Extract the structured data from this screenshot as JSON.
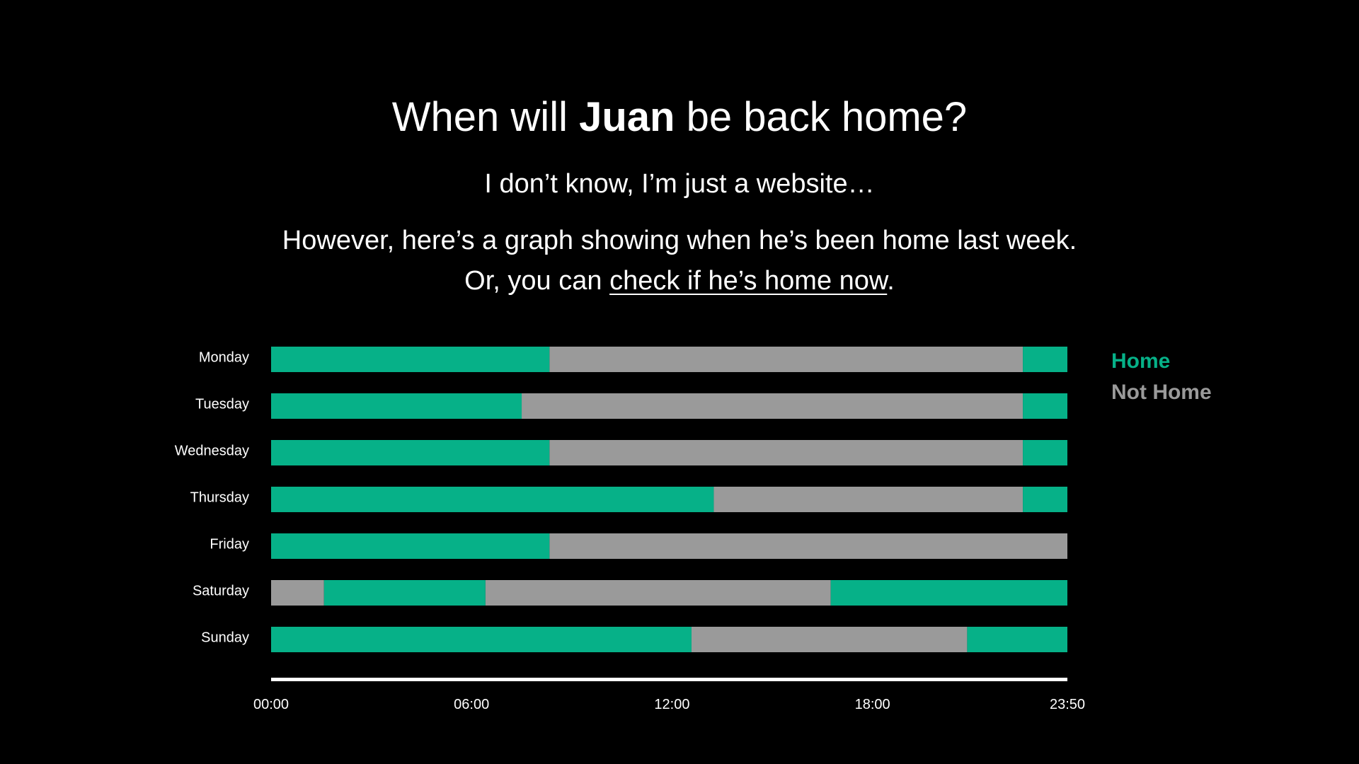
{
  "header": {
    "title_prefix": "When will ",
    "title_name": "Juan",
    "title_suffix": " be back home?",
    "subtitle": "I don’t know, I’m just a website…",
    "description_line1": "However, here’s a graph showing when he’s been home last week.",
    "description_line2_prefix": "Or, you can ",
    "description_link": "check if he’s home now",
    "description_line2_suffix": "."
  },
  "chart_data": {
    "type": "bar",
    "orientation": "horizontal-timeline",
    "x_unit": "time of day",
    "xlim": [
      "00:00",
      "23:50"
    ],
    "x_ticks": [
      "00:00",
      "06:00",
      "12:00",
      "18:00",
      "23:50"
    ],
    "categories": [
      "Monday",
      "Tuesday",
      "Wednesday",
      "Thursday",
      "Friday",
      "Saturday",
      "Sunday"
    ],
    "legend": {
      "placement": "top-right",
      "entries": [
        {
          "name": "Home",
          "color": "#06b188"
        },
        {
          "name": "Not Home",
          "color": "#9a9a9a"
        }
      ]
    },
    "rows": [
      {
        "day": "Monday",
        "segments": [
          {
            "status": "Home",
            "start": "00:00",
            "end": "08:20"
          },
          {
            "status": "Not Home",
            "start": "08:20",
            "end": "22:30"
          },
          {
            "status": "Home",
            "start": "22:30",
            "end": "23:50"
          }
        ]
      },
      {
        "day": "Tuesday",
        "segments": [
          {
            "status": "Home",
            "start": "00:00",
            "end": "07:30"
          },
          {
            "status": "Not Home",
            "start": "07:30",
            "end": "22:30"
          },
          {
            "status": "Home",
            "start": "22:30",
            "end": "23:50"
          }
        ]
      },
      {
        "day": "Wednesday",
        "segments": [
          {
            "status": "Home",
            "start": "00:00",
            "end": "08:20"
          },
          {
            "status": "Not Home",
            "start": "08:20",
            "end": "22:30"
          },
          {
            "status": "Home",
            "start": "22:30",
            "end": "23:50"
          }
        ]
      },
      {
        "day": "Thursday",
        "segments": [
          {
            "status": "Home",
            "start": "00:00",
            "end": "13:15"
          },
          {
            "status": "Not Home",
            "start": "13:15",
            "end": "22:30"
          },
          {
            "status": "Home",
            "start": "22:30",
            "end": "23:50"
          }
        ]
      },
      {
        "day": "Friday",
        "segments": [
          {
            "status": "Home",
            "start": "00:00",
            "end": "08:20"
          },
          {
            "status": "Not Home",
            "start": "08:20",
            "end": "23:50"
          }
        ]
      },
      {
        "day": "Saturday",
        "segments": [
          {
            "status": "Not Home",
            "start": "00:00",
            "end": "01:35"
          },
          {
            "status": "Home",
            "start": "01:35",
            "end": "06:25"
          },
          {
            "status": "Not Home",
            "start": "06:25",
            "end": "16:45"
          },
          {
            "status": "Home",
            "start": "16:45",
            "end": "23:50"
          }
        ]
      },
      {
        "day": "Sunday",
        "segments": [
          {
            "status": "Home",
            "start": "00:00",
            "end": "12:35"
          },
          {
            "status": "Not Home",
            "start": "12:35",
            "end": "20:50"
          },
          {
            "status": "Home",
            "start": "20:50",
            "end": "23:50"
          }
        ]
      }
    ]
  }
}
